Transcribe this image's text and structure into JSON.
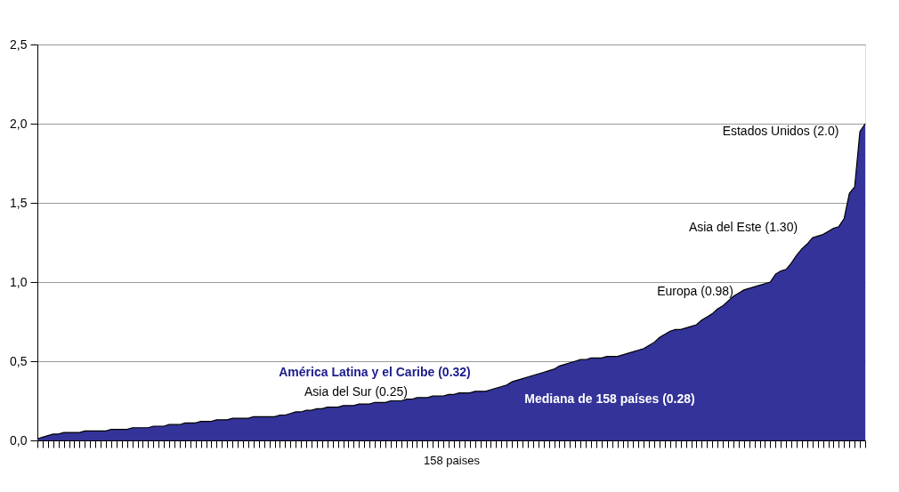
{
  "chart_data": {
    "type": "area",
    "xlabel": "158 paises",
    "categories": [
      null,
      null,
      null,
      null,
      null,
      null,
      null,
      null,
      null,
      null,
      null,
      null,
      null,
      null,
      null,
      null,
      null,
      null,
      null,
      null,
      null,
      null,
      null,
      null,
      null,
      null,
      null,
      null,
      null,
      null,
      null,
      null,
      null,
      null,
      null,
      null,
      null,
      null,
      null,
      null,
      null,
      null,
      null,
      null,
      null,
      null,
      null,
      null,
      null,
      null,
      null,
      null,
      null,
      null,
      null,
      null,
      null,
      null,
      null,
      null,
      null,
      null,
      null,
      null,
      null,
      null,
      null,
      null,
      null,
      null,
      null,
      null,
      null,
      null,
      null,
      null,
      null,
      null,
      null,
      null,
      null,
      null,
      null,
      null,
      null,
      null,
      null,
      null,
      null,
      null,
      null,
      null,
      null,
      null,
      null,
      null,
      null,
      null,
      null,
      null,
      null,
      null,
      null,
      null,
      null,
      null,
      null,
      null,
      null,
      null,
      null,
      null,
      null,
      null,
      null,
      null,
      null,
      null,
      null,
      null,
      null,
      null,
      null,
      null,
      null,
      null,
      null,
      null,
      null,
      null,
      null,
      null,
      null,
      null,
      null,
      null,
      null,
      null,
      null,
      null,
      null,
      null,
      null,
      null,
      null,
      null,
      null,
      null,
      null,
      null,
      null,
      null,
      null,
      null,
      null,
      null,
      null,
      null
    ],
    "values": [
      0.01,
      0.02,
      0.03,
      0.04,
      0.04,
      0.05,
      0.05,
      0.05,
      0.05,
      0.06,
      0.06,
      0.06,
      0.06,
      0.06,
      0.07,
      0.07,
      0.07,
      0.07,
      0.08,
      0.08,
      0.08,
      0.08,
      0.09,
      0.09,
      0.09,
      0.1,
      0.1,
      0.1,
      0.11,
      0.11,
      0.11,
      0.12,
      0.12,
      0.12,
      0.13,
      0.13,
      0.13,
      0.14,
      0.14,
      0.14,
      0.14,
      0.15,
      0.15,
      0.15,
      0.15,
      0.15,
      0.16,
      0.16,
      0.17,
      0.18,
      0.18,
      0.19,
      0.19,
      0.2,
      0.2,
      0.21,
      0.21,
      0.21,
      0.22,
      0.22,
      0.22,
      0.23,
      0.23,
      0.23,
      0.24,
      0.24,
      0.24,
      0.25,
      0.25,
      0.25,
      0.26,
      0.26,
      0.27,
      0.27,
      0.27,
      0.28,
      0.28,
      0.28,
      0.29,
      0.29,
      0.3,
      0.3,
      0.3,
      0.31,
      0.31,
      0.31,
      0.32,
      0.33,
      0.34,
      0.35,
      0.37,
      0.38,
      0.39,
      0.4,
      0.41,
      0.42,
      0.43,
      0.44,
      0.45,
      0.47,
      0.48,
      0.49,
      0.5,
      0.51,
      0.51,
      0.52,
      0.52,
      0.52,
      0.53,
      0.53,
      0.53,
      0.54,
      0.55,
      0.56,
      0.57,
      0.58,
      0.6,
      0.62,
      0.65,
      0.67,
      0.69,
      0.7,
      0.7,
      0.71,
      0.72,
      0.73,
      0.76,
      0.78,
      0.8,
      0.83,
      0.85,
      0.88,
      0.91,
      0.93,
      0.95,
      0.96,
      0.97,
      0.98,
      0.99,
      1.0,
      1.05,
      1.07,
      1.08,
      1.12,
      1.17,
      1.21,
      1.24,
      1.28,
      1.29,
      1.3,
      1.32,
      1.34,
      1.35,
      1.4,
      1.56,
      1.6,
      1.95,
      2.0
    ],
    "color": "#333399",
    "ylim": [
      0,
      2.5
    ],
    "yticks": [
      {
        "value": 0,
        "label": "0,0"
      },
      {
        "value": 0.5,
        "label": "0,5"
      },
      {
        "value": 1,
        "label": "1,0"
      },
      {
        "value": 1.5,
        "label": "1,5"
      },
      {
        "value": 2,
        "label": "2,0"
      },
      {
        "value": 2.5,
        "label": "2,5"
      }
    ],
    "grid": "y",
    "tick_labels": "y",
    "annotations": [
      "Estados Unidos (2.0)",
      "Asia del Este (1.30)",
      "Europa (0.98)",
      "América Latina y el Caribe (0.32)",
      "Asia del Sur (0.25)",
      "Mediana de 158 países (0.28)"
    ]
  }
}
